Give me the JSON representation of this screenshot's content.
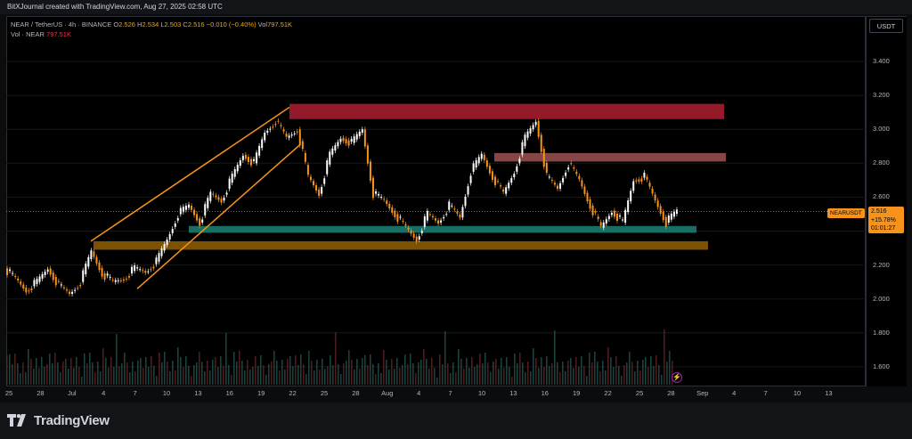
{
  "header": {
    "attribution": "BitXJournal created with TradingView.com, Aug 27, 2025 02:58 UTC"
  },
  "legend": {
    "symbol_line": "NEAR / TetherUS · 4h · BINANCE",
    "o_label": "O",
    "o": "2.526",
    "h_label": "H",
    "h": "2.534",
    "l_label": "L",
    "l": "2.503",
    "c_label": "C",
    "c": "2.516",
    "change": "−0.010 (−0.40%)",
    "vol_label": "Vol",
    "vol": "797.51K",
    "vol_line_label": "Vol · NEAR",
    "vol_line_value": "797.51K"
  },
  "currency": "USDT",
  "price_tag": {
    "symbol": "NEARUSDT",
    "price": "2.516",
    "pct": "+15.78%",
    "countdown": "01:01:27"
  },
  "colors": {
    "up": "#ffffff",
    "down": "#f7931a",
    "accent": "#f7931a",
    "resistance1": "#a51d2d",
    "resistance2": "#b25d5d",
    "support_teal": "#1b7a6e",
    "support_orange": "#8a5a00"
  },
  "footer": {
    "brand": "TradingView",
    "logo_icon": "tradingview-logo-icon"
  },
  "chart_data": {
    "type": "candlestick",
    "symbol": "NEAR / TetherUS",
    "interval": "4h",
    "exchange": "BINANCE",
    "y_ticks": [
      "3.400",
      "3.200",
      "3.000",
      "2.800",
      "2.600",
      "2.400",
      "2.200",
      "2.000",
      "1.800",
      "1.600"
    ],
    "ylim": [
      1.5,
      3.6
    ],
    "x_ticks": [
      "25",
      "28",
      "Jul",
      "4",
      "7",
      "10",
      "13",
      "16",
      "19",
      "22",
      "25",
      "28",
      "Aug",
      "4",
      "7",
      "10",
      "13",
      "16",
      "19",
      "22",
      "25",
      "28",
      "Sep",
      "4",
      "7",
      "10",
      "13"
    ],
    "price_path": [
      2.18,
      2.12,
      2.05,
      2.1,
      2.18,
      2.08,
      2.03,
      2.1,
      2.28,
      2.15,
      2.1,
      2.12,
      2.18,
      2.16,
      2.22,
      2.35,
      2.5,
      2.55,
      2.45,
      2.62,
      2.58,
      2.72,
      2.85,
      2.8,
      2.98,
      3.05,
      2.95,
      3.0,
      2.72,
      2.62,
      2.85,
      2.95,
      2.92,
      3.0,
      2.62,
      2.58,
      2.5,
      2.42,
      2.35,
      2.5,
      2.45,
      2.55,
      2.48,
      2.75,
      2.85,
      2.72,
      2.62,
      2.75,
      2.95,
      3.05,
      2.72,
      2.65,
      2.8,
      2.7,
      2.55,
      2.42,
      2.52,
      2.45,
      2.7,
      2.72,
      2.58,
      2.45,
      2.52
    ],
    "annotations": {
      "resistance_zones": [
        [
          3.06,
          3.15
        ],
        [
          2.81,
          2.86
        ]
      ],
      "support_zones": [
        [
          2.39,
          2.43
        ],
        [
          2.29,
          2.34
        ]
      ],
      "rising_channel": {
        "upper": [
          [
            2.34,
            3.13
          ]
        ],
        "lower": [
          [
            2.06,
            2.91
          ]
        ]
      }
    }
  }
}
